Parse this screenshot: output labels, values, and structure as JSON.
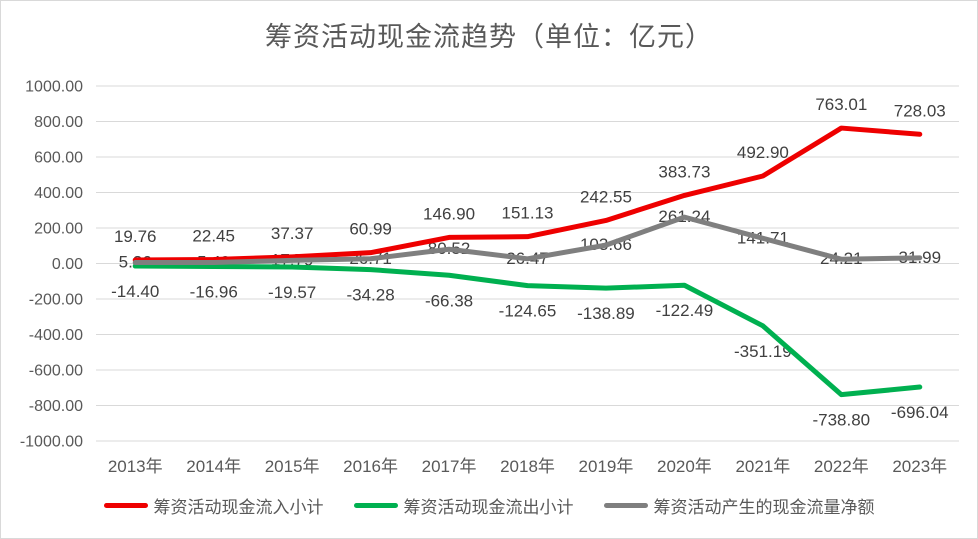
{
  "chart_data": {
    "type": "line",
    "title": "筹资活动现金流趋势（单位：亿元）",
    "categories": [
      "2013年",
      "2014年",
      "2015年",
      "2016年",
      "2017年",
      "2018年",
      "2019年",
      "2020年",
      "2021年",
      "2022年",
      "2023年"
    ],
    "series": [
      {
        "key": "inflow",
        "name": "筹资活动现金流入小计",
        "color": "#ee0000",
        "label_position": "above",
        "values": [
          19.76,
          22.45,
          37.37,
          60.99,
          146.9,
          151.13,
          242.55,
          383.73,
          492.9,
          763.01,
          728.03
        ]
      },
      {
        "key": "outflow",
        "name": "筹资活动现金流出小计",
        "color": "#00b050",
        "label_position": "below",
        "values": [
          -14.4,
          -16.96,
          -19.57,
          -34.28,
          -66.38,
          -124.65,
          -138.89,
          -122.49,
          -351.19,
          -738.8,
          -696.04
        ]
      },
      {
        "key": "net",
        "name": "筹资活动产生的现金流量净额",
        "color": "#7f7f7f",
        "label_position": "center",
        "values": [
          5.36,
          5.49,
          17.79,
          26.71,
          80.52,
          26.47,
          103.66,
          261.24,
          141.71,
          24.21,
          31.99
        ]
      }
    ],
    "ylim": [
      -1000,
      1000
    ],
    "y_tick_step": 200,
    "value_decimals": 2,
    "grid": true,
    "legend_position": "bottom"
  },
  "colors": {
    "background": "#ffffff",
    "border": "#d9d9d9",
    "gridline": "#d9d9d9",
    "axis_text": "#595959",
    "title_text": "#595959",
    "data_label_text": "#404040"
  }
}
